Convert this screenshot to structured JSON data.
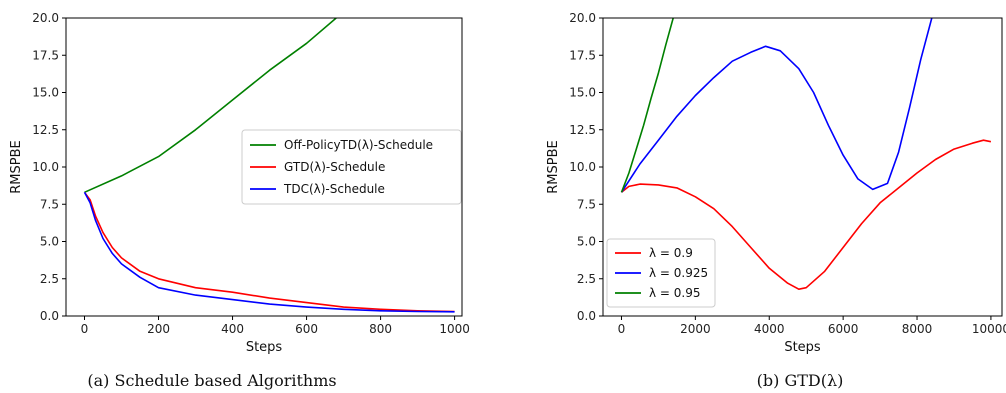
{
  "chart_data": [
    {
      "type": "line",
      "caption": "(a) Schedule based Algorithms",
      "xlabel": "Steps",
      "ylabel": "RMSPBE",
      "xlim": [
        -50,
        1020
      ],
      "ylim": [
        0,
        20
      ],
      "xticks": [
        0,
        200,
        400,
        600,
        800,
        1000
      ],
      "xtick_labels": [
        "0",
        "200",
        "400",
        "600",
        "800",
        "1000"
      ],
      "yticks": [
        0,
        2.5,
        5,
        7.5,
        10,
        12.5,
        15,
        17.5,
        20
      ],
      "ytick_labels": [
        "0.0",
        "2.5",
        "5.0",
        "7.5",
        "10.0",
        "12.5",
        "15.0",
        "17.5",
        "20.0"
      ],
      "legend_position": "center-right",
      "series": [
        {
          "name": "Off-PolicyTD(λ)-Schedule",
          "color": "#008000",
          "x": [
            0,
            100,
            200,
            300,
            400,
            500,
            600,
            680
          ],
          "y": [
            8.3,
            9.4,
            10.7,
            12.5,
            14.5,
            16.5,
            18.3,
            20.0
          ]
        },
        {
          "name": "GTD(λ)-Schedule",
          "color": "#ff0000",
          "x": [
            0,
            15,
            30,
            50,
            75,
            100,
            150,
            200,
            300,
            400,
            500,
            600,
            700,
            800,
            900,
            1000
          ],
          "y": [
            8.3,
            7.8,
            6.7,
            5.6,
            4.6,
            3.9,
            3.0,
            2.5,
            1.9,
            1.6,
            1.2,
            0.9,
            0.6,
            0.45,
            0.35,
            0.3
          ]
        },
        {
          "name": "TDC(λ)-Schedule",
          "color": "#0000ff",
          "x": [
            0,
            15,
            30,
            50,
            75,
            100,
            150,
            200,
            300,
            400,
            500,
            600,
            700,
            800,
            900,
            1000
          ],
          "y": [
            8.3,
            7.6,
            6.4,
            5.2,
            4.2,
            3.5,
            2.6,
            1.9,
            1.4,
            1.1,
            0.8,
            0.6,
            0.45,
            0.35,
            0.3,
            0.28
          ]
        }
      ]
    },
    {
      "type": "line",
      "caption": "(b) GTD(λ)",
      "xlabel": "Steps",
      "ylabel": "RMSPBE",
      "xlim": [
        -500,
        10300
      ],
      "ylim": [
        0,
        20
      ],
      "xticks": [
        0,
        2000,
        4000,
        6000,
        8000,
        10000
      ],
      "xtick_labels": [
        "0",
        "2000",
        "4000",
        "6000",
        "8000",
        "10000"
      ],
      "yticks": [
        0,
        2.5,
        5,
        7.5,
        10,
        12.5,
        15,
        17.5,
        20
      ],
      "ytick_labels": [
        "0.0",
        "2.5",
        "5.0",
        "7.5",
        "10.0",
        "12.5",
        "15.0",
        "17.5",
        "20.0"
      ],
      "legend_position": "lower-left",
      "series": [
        {
          "name": "λ = 0.9",
          "color": "#ff0000",
          "x": [
            0,
            200,
            500,
            1000,
            1500,
            2000,
            2500,
            3000,
            3500,
            4000,
            4500,
            4800,
            5000,
            5500,
            6000,
            6500,
            7000,
            7500,
            8000,
            8500,
            9000,
            9500,
            9800,
            10000
          ],
          "y": [
            8.3,
            8.7,
            8.85,
            8.8,
            8.6,
            8.0,
            7.2,
            6.0,
            4.6,
            3.2,
            2.2,
            1.8,
            1.9,
            3.0,
            4.6,
            6.2,
            7.6,
            8.6,
            9.6,
            10.5,
            11.2,
            11.6,
            11.8,
            11.7
          ]
        },
        {
          "name": "λ = 0.925",
          "color": "#0000ff",
          "x": [
            0,
            500,
            1000,
            1500,
            2000,
            2500,
            3000,
            3500,
            3900,
            4300,
            4800,
            5200,
            5600,
            6000,
            6400,
            6800,
            7200,
            7500,
            7800,
            8100,
            8400
          ],
          "y": [
            8.3,
            10.2,
            11.8,
            13.4,
            14.8,
            16.0,
            17.1,
            17.7,
            18.1,
            17.8,
            16.6,
            15.0,
            12.8,
            10.8,
            9.2,
            8.5,
            8.9,
            11.0,
            14.0,
            17.2,
            20.0
          ]
        },
        {
          "name": "λ = 0.95",
          "color": "#008000",
          "x": [
            0,
            200,
            400,
            600,
            800,
            1000,
            1200,
            1400
          ],
          "y": [
            8.3,
            9.6,
            11.2,
            12.8,
            14.6,
            16.3,
            18.2,
            20.0
          ]
        }
      ]
    }
  ]
}
